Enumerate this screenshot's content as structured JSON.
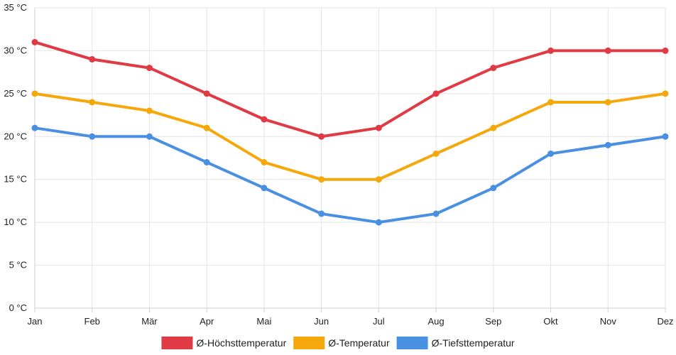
{
  "chart_data": {
    "type": "line",
    "title": "",
    "xlabel": "",
    "ylabel": "",
    "categories": [
      "Jan",
      "Feb",
      "Mär",
      "Apr",
      "Mai",
      "Jun",
      "Jul",
      "Aug",
      "Sep",
      "Okt",
      "Nov",
      "Dez"
    ],
    "ylim": [
      0,
      35
    ],
    "yticks": [
      0,
      5,
      10,
      15,
      20,
      25,
      30,
      35
    ],
    "ytick_labels": [
      "0 °C",
      "5 °C",
      "10 °C",
      "15 °C",
      "20 °C",
      "25 °C",
      "30 °C",
      "35 °C"
    ],
    "grid": true,
    "legend_position": "bottom",
    "series": [
      {
        "name": "Ø-Höchsttemperatur",
        "color": "#e03a44",
        "values": [
          31,
          29,
          28,
          25,
          22,
          20,
          21,
          25,
          28,
          30,
          30,
          30
        ]
      },
      {
        "name": "Ø-Temperatur",
        "color": "#f5a80c",
        "values": [
          25,
          24,
          23,
          21,
          17,
          15,
          15,
          18,
          21,
          24,
          24,
          25
        ]
      },
      {
        "name": "Ø-Tiefsttemperatur",
        "color": "#4a90e2",
        "values": [
          21,
          20,
          20,
          17,
          14,
          11,
          10,
          11,
          14,
          18,
          19,
          20
        ]
      }
    ]
  }
}
